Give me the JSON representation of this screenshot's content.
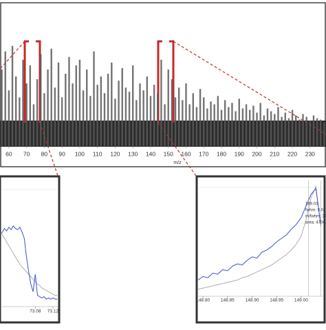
{
  "chart_data": [
    {
      "type": "bar",
      "xlabel": "m/z",
      "color": "#5a5a5a",
      "x": [
        56,
        58,
        60,
        62,
        64,
        66,
        68,
        70,
        72,
        74,
        76,
        78,
        80,
        82,
        84,
        86,
        88,
        90,
        92,
        94,
        96,
        98,
        100,
        102,
        104,
        106,
        108,
        110,
        112,
        114,
        116,
        118,
        120,
        122,
        124,
        126,
        128,
        130,
        132,
        134,
        136,
        138,
        140,
        142,
        144,
        146,
        148,
        150,
        152,
        154,
        156,
        158,
        160,
        162,
        164,
        166,
        168,
        170,
        172,
        174,
        176,
        178,
        180,
        182,
        184,
        186,
        188,
        190,
        192,
        194,
        196,
        198,
        200,
        202,
        204,
        206,
        208,
        210,
        212,
        214,
        216,
        218,
        220,
        222,
        224,
        226,
        228,
        230,
        232,
        234,
        236,
        238
      ],
      "values": [
        55,
        68,
        40,
        72,
        50,
        35,
        62,
        45,
        58,
        30,
        48,
        66,
        38,
        55,
        70,
        42,
        60,
        35,
        52,
        64,
        45,
        58,
        62,
        40,
        55,
        36,
        68,
        44,
        50,
        38,
        52,
        60,
        34,
        47,
        56,
        42,
        39,
        58,
        33,
        45,
        40,
        50,
        36,
        44,
        38,
        62,
        30,
        55,
        48,
        35,
        42,
        33,
        45,
        30,
        38,
        28,
        41,
        35,
        27,
        32,
        30,
        36,
        26,
        33,
        28,
        31,
        25,
        34,
        27,
        30,
        26,
        29,
        24,
        31,
        22,
        27,
        25,
        23,
        28,
        21,
        24,
        20,
        26,
        22,
        19,
        23,
        21,
        18,
        22,
        20,
        19,
        17
      ],
      "xlim": [
        55,
        239
      ],
      "ylim": [
        0,
        100
      ],
      "xticks": [
        60,
        70,
        80,
        90,
        100,
        110,
        120,
        130,
        140,
        150,
        160,
        170,
        180,
        190,
        200,
        210,
        220,
        230
      ]
    },
    {
      "type": "line",
      "xlim": [
        73.003,
        73.131
      ],
      "ylim": [
        0,
        100
      ],
      "xticks": [
        73.08,
        73.12
      ],
      "x": [
        73.0,
        73.005,
        73.01,
        73.015,
        73.02,
        73.025,
        73.03,
        73.035,
        73.04,
        73.045,
        73.05,
        73.055,
        73.06,
        73.065,
        73.07,
        73.075,
        73.08,
        73.085,
        73.09,
        73.095,
        73.1,
        73.105,
        73.11,
        73.115,
        73.12,
        73.125,
        73.13
      ],
      "series": [
        {
          "color": "#3a4fd0",
          "values": [
            58,
            60,
            63,
            61,
            64,
            62,
            65,
            63,
            62,
            64,
            60,
            55,
            40,
            28,
            18,
            12,
            26,
            9,
            8,
            7,
            8,
            6,
            7,
            6,
            7,
            6,
            6
          ]
        },
        {
          "color": "#999999",
          "values": [
            60,
            58,
            55,
            52,
            49,
            46,
            43,
            40,
            37,
            34,
            32,
            30,
            28,
            26,
            24,
            22,
            20,
            18,
            17,
            15,
            14,
            13,
            12,
            11,
            10,
            9,
            9
          ]
        }
      ]
    },
    {
      "type": "line",
      "xlim": [
        148.79,
        149.045
      ],
      "ylim": [
        0,
        100
      ],
      "xticks": [
        {
          "value": 148.8,
          "label": "148.80"
        },
        148.85,
        {
          "value": 148.9,
          "label": "148.90"
        },
        148.95,
        {
          "value": 149.0,
          "label": "149.00"
        }
      ],
      "annotations": [
        "149.03",
        "fwhm: 0.02",
        "m/fwhm: 30",
        "area: 4706.0"
      ],
      "x": [
        148.79,
        148.8,
        148.81,
        148.82,
        148.83,
        148.84,
        148.85,
        148.86,
        148.87,
        148.88,
        148.89,
        148.9,
        148.91,
        148.92,
        148.93,
        148.94,
        148.95,
        148.96,
        148.97,
        148.98,
        148.99,
        149.0,
        149.01,
        149.02,
        149.03,
        149.04
      ],
      "series": [
        {
          "color": "#3a4fd0",
          "values": [
            14,
            17,
            16,
            20,
            19,
            23,
            22,
            26,
            28,
            27,
            31,
            34,
            33,
            38,
            40,
            43,
            47,
            50,
            53,
            58,
            62,
            68,
            78,
            88,
            93,
            62
          ]
        },
        {
          "color": "#999999",
          "values": [
            6,
            7,
            8,
            9,
            10,
            11,
            12,
            13,
            14,
            16,
            17,
            19,
            21,
            23,
            25,
            27,
            30,
            33,
            36,
            40,
            45,
            52,
            66,
            85,
            95,
            60
          ]
        }
      ]
    }
  ]
}
